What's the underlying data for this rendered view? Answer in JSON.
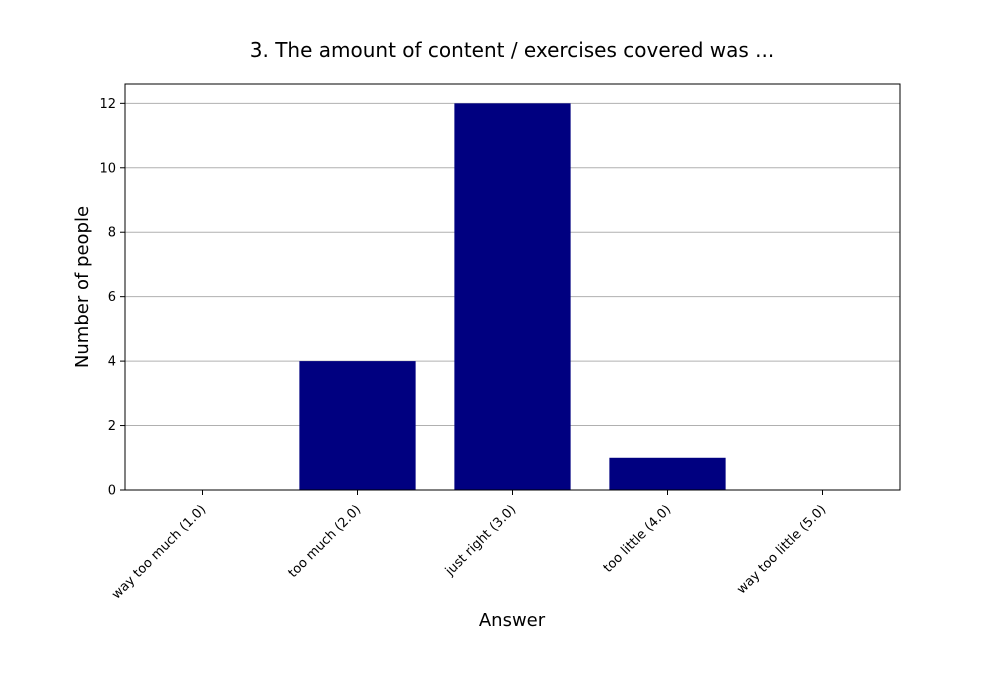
{
  "chart_data": {
    "type": "bar",
    "title": "3. The amount of content / exercises covered was ...",
    "xlabel": "Answer",
    "ylabel": "Number of people",
    "categories": [
      "way too much (1.0)",
      "too much (2.0)",
      "just right (3.0)",
      "too little (4.0)",
      "way too little (5.0)"
    ],
    "values": [
      0,
      4,
      12,
      1,
      0
    ],
    "ylim": [
      0,
      12.6
    ],
    "yticks": [
      0,
      2,
      4,
      6,
      8,
      10,
      12
    ],
    "grid": "horizontal",
    "bar_color": "#000080",
    "grid_color": "#b0b0b0"
  }
}
